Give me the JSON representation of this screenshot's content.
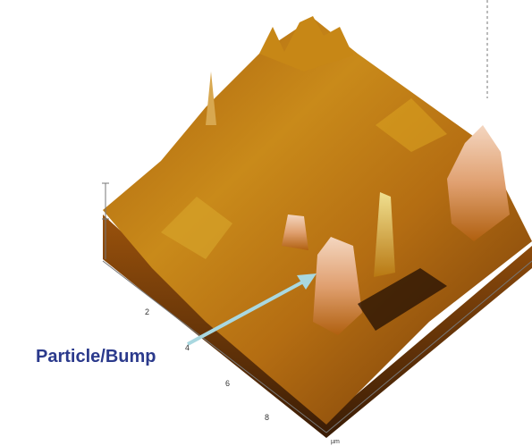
{
  "annotation": {
    "label": "Particle/Bump"
  },
  "axis": {
    "ticks": [
      "2",
      "4",
      "6",
      "8"
    ],
    "unit": "µm"
  }
}
